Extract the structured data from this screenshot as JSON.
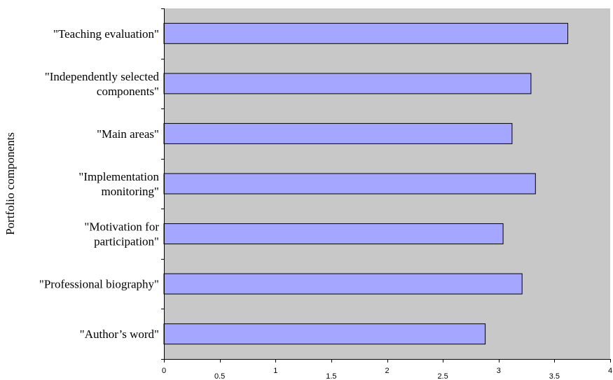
{
  "chart_data": {
    "type": "bar",
    "orientation": "horizontal",
    "ylabel": "Portfolio components",
    "xlim": [
      0,
      4
    ],
    "x_ticks": [
      "0",
      "0.5",
      "1",
      "1.5",
      "2",
      "2.5",
      "3",
      "3.5",
      "4"
    ],
    "grid": false,
    "legend": "none",
    "colors": {
      "bar_fill": "#a5a6ff",
      "bar_stroke": "#000000",
      "plot_background": "#c8c8c8"
    },
    "categories": [
      [
        "\"Teaching evaluation\""
      ],
      [
        "\"Independently selected",
        "components\""
      ],
      [
        "\"Main areas\""
      ],
      [
        "\"Implementation",
        "monitoring\""
      ],
      [
        "\"Motivation for",
        "participation\""
      ],
      [
        "\"Professional biography\""
      ],
      [
        "\"Author’s word\""
      ]
    ],
    "values": [
      3.62,
      3.29,
      3.12,
      3.33,
      3.04,
      3.21,
      2.88
    ]
  }
}
